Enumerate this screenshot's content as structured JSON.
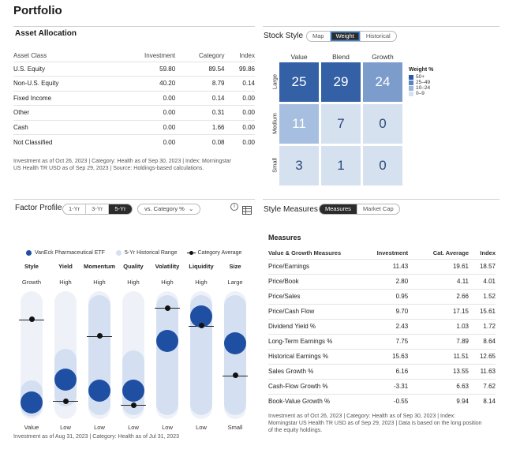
{
  "page_title": "Portfolio",
  "asset_allocation": {
    "title": "Asset Allocation",
    "columns": [
      "Asset Class",
      "Investment",
      "Category",
      "Index"
    ],
    "rows": [
      [
        "U.S. Equity",
        "59.80",
        "89.54",
        "99.86"
      ],
      [
        "Non-U.S. Equity",
        "40.20",
        "8.79",
        "0.14"
      ],
      [
        "Fixed Income",
        "0.00",
        "0.14",
        "0.00"
      ],
      [
        "Other",
        "0.00",
        "0.31",
        "0.00"
      ],
      [
        "Cash",
        "0.00",
        "1.66",
        "0.00"
      ],
      [
        "Not Classified",
        "0.00",
        "0.08",
        "0.00"
      ]
    ],
    "footnote_1": "Investment as of Oct 26, 2023 | Category: Health as of Sep 30, 2023 | Index: Morningstar",
    "footnote_2": "US Health TR USD as of Sep 29, 2023 | Source: Holdings-based calculations."
  },
  "stock_style": {
    "title": "Stock Style",
    "tabs": [
      "Map",
      "Weight",
      "Historical"
    ],
    "active_tab": "Weight",
    "col_labels": [
      "Value",
      "Blend",
      "Growth"
    ],
    "row_labels": [
      "Large",
      "Medium",
      "Small"
    ],
    "grid": [
      [
        {
          "v": "25",
          "c": "#3461a6"
        },
        {
          "v": "29",
          "c": "#3461a6"
        },
        {
          "v": "24",
          "c": "#7c9dcc"
        }
      ],
      [
        {
          "v": "11",
          "c": "#a6bedf"
        },
        {
          "v": "7",
          "c": "#d6e1f0"
        },
        {
          "v": "0",
          "c": "#d6e1f0"
        }
      ],
      [
        {
          "v": "3",
          "c": "#d6e1f0"
        },
        {
          "v": "1",
          "c": "#d6e1f0"
        },
        {
          "v": "0",
          "c": "#d6e1f0"
        }
      ]
    ],
    "legend_title": "Weight %",
    "legend": [
      {
        "label": "50+",
        "color": "#2b5aa0"
      },
      {
        "label": "25–49",
        "color": "#5b82c1"
      },
      {
        "label": "10–24",
        "color": "#9bb5dc"
      },
      {
        "label": "0–9",
        "color": "#d6e1f0"
      }
    ]
  },
  "factor_profile": {
    "title": "Factor Profile",
    "periods": [
      "1-Yr",
      "3-Yr",
      "5-Yr"
    ],
    "active_period": "5-Yr",
    "compare_dropdown": "vs. Category %",
    "legend": {
      "fund": "VanEck Pharmaceutical ETF",
      "range": "5-Yr Historical Range",
      "category": "Category Average"
    },
    "colors": {
      "fund": "#1f4fa3",
      "range": "#d4e0f1",
      "track": "#eef2f8"
    },
    "factors": [
      {
        "name": "Style",
        "top": "Growth",
        "bottom": "Value",
        "fund": 0.13,
        "cat": 0.78,
        "range": [
          0.02,
          0.3
        ]
      },
      {
        "name": "Yield",
        "top": "High",
        "bottom": "Low",
        "fund": 0.31,
        "cat": 0.14,
        "range": [
          0.1,
          0.55
        ]
      },
      {
        "name": "Momentum",
        "top": "High",
        "bottom": "Low",
        "fund": 0.22,
        "cat": 0.65,
        "range": [
          0.03,
          0.97
        ]
      },
      {
        "name": "Quality",
        "top": "High",
        "bottom": "Low",
        "fund": 0.22,
        "cat": 0.11,
        "range": [
          0.03,
          0.54
        ]
      },
      {
        "name": "Volatility",
        "top": "High",
        "bottom": "Low",
        "fund": 0.61,
        "cat": 0.87,
        "range": [
          0.03,
          0.97
        ]
      },
      {
        "name": "Liquidity",
        "top": "High",
        "bottom": "Low",
        "fund": 0.8,
        "cat": 0.73,
        "range": [
          0.03,
          0.97
        ]
      },
      {
        "name": "Size",
        "top": "Large",
        "bottom": "Small",
        "fund": 0.59,
        "cat": 0.34,
        "range": [
          0.03,
          0.97
        ]
      }
    ],
    "footnote": "Investment as of Aug 31, 2023 | Category: Health as of Jul 31, 2023"
  },
  "style_measures": {
    "title": "Style Measures",
    "tabs": [
      "Measures",
      "Market Cap"
    ],
    "active_tab": "Measures",
    "subtitle": "Measures",
    "columns": [
      "Value & Growth Measures",
      "Investment",
      "Cat. Average",
      "Index"
    ],
    "rows": [
      [
        "Price/Earnings",
        "11.43",
        "19.61",
        "18.57"
      ],
      [
        "Price/Book",
        "2.80",
        "4.11",
        "4.01"
      ],
      [
        "Price/Sales",
        "0.95",
        "2.66",
        "1.52"
      ],
      [
        "Price/Cash Flow",
        "9.70",
        "17.15",
        "15.61"
      ],
      [
        "Dividend Yield %",
        "2.43",
        "1.03",
        "1.72"
      ],
      [
        "Long-Term Earnings %",
        "7.75",
        "7.89",
        "8.64"
      ],
      [
        "Historical Earnings %",
        "15.63",
        "11.51",
        "12.65"
      ],
      [
        "Sales Growth %",
        "6.16",
        "13.55",
        "11.63"
      ],
      [
        "Cash-Flow Growth %",
        "-3.31",
        "6.63",
        "7.62"
      ],
      [
        "Book-Value Growth %",
        "-0.55",
        "9.94",
        "8.14"
      ]
    ],
    "footnote_1": "Investment as of Oct 26, 2023 | Category: Health as of Sep 30, 2023 | Index:",
    "footnote_2": "Morningstar US Health TR USD as of Sep 29, 2023 | Data is based on the long position",
    "footnote_3": "of the equity holdings."
  }
}
